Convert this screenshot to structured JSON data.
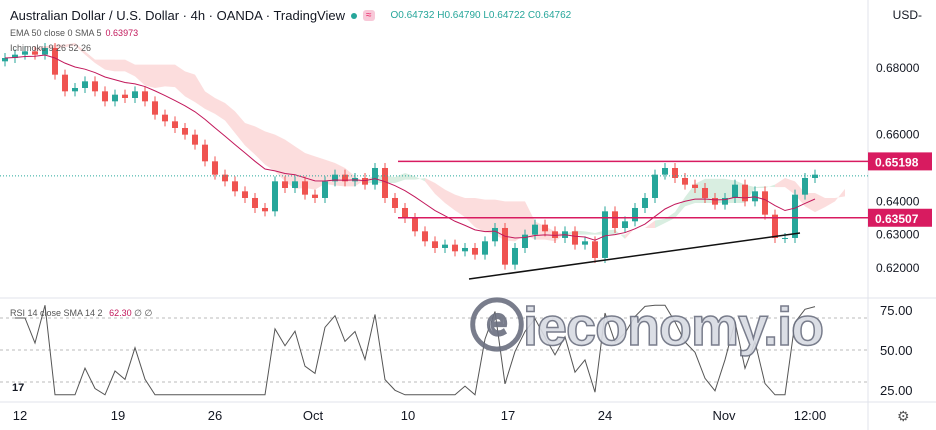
{
  "header": {
    "title": "Australian Dollar / U.S. Dollar · 4h · OANDA · TradingView",
    "open": "O0.64732",
    "high": "H0.64790",
    "low": "L0.64722",
    "close": "C0.64762",
    "badge": "≈"
  },
  "indicators": {
    "ema": {
      "label": "EMA 50 close 0 SMA 5",
      "value": "0.63973"
    },
    "ichimoku": {
      "label": "Ichimoku 9 26 52 26"
    },
    "rsi": {
      "label": "RSI 14 close SMA 14 2",
      "value": "62.30",
      "extra": "∅ ∅"
    }
  },
  "currency": "USD-",
  "watermark": "ieconomy.io",
  "tv_logo": "17",
  "colors": {
    "up": "#26a69a",
    "down": "#ef5350",
    "ema": "#c2185b",
    "level": "#d81b60",
    "cloud_bear": "#fbd5d5",
    "cloud_bull": "#cfead9",
    "rsi": "#555555"
  },
  "chart_data": {
    "type": "candlestick",
    "price_axis": {
      "ylim": [
        0.616,
        0.69
      ],
      "ticks": [
        "0.68000",
        "0.66000",
        "0.64000",
        "0.63000",
        "0.62000"
      ]
    },
    "time_axis": {
      "ticks": [
        "12",
        "19",
        "26",
        "Oct",
        "10",
        "17",
        "24",
        "Nov",
        "12:00"
      ]
    },
    "closes": [
      0.683,
      0.684,
      0.685,
      0.684,
      0.686,
      0.678,
      0.673,
      0.674,
      0.676,
      0.673,
      0.67,
      0.672,
      0.671,
      0.673,
      0.67,
      0.666,
      0.664,
      0.662,
      0.66,
      0.657,
      0.652,
      0.648,
      0.646,
      0.643,
      0.641,
      0.638,
      0.637,
      0.646,
      0.644,
      0.646,
      0.642,
      0.641,
      0.646,
      0.648,
      0.646,
      0.647,
      0.645,
      0.65,
      0.641,
      0.638,
      0.635,
      0.631,
      0.628,
      0.626,
      0.627,
      0.625,
      0.626,
      0.624,
      0.628,
      0.632,
      0.621,
      0.626,
      0.63,
      0.633,
      0.631,
      0.629,
      0.631,
      0.627,
      0.628,
      0.623,
      0.637,
      0.632,
      0.634,
      0.638,
      0.641,
      0.648,
      0.65,
      0.647,
      0.645,
      0.644,
      0.641,
      0.639,
      0.641,
      0.645,
      0.64,
      0.643,
      0.636,
      0.629,
      0.629,
      0.642,
      0.647,
      0.648
    ],
    "levels": [
      {
        "price": 0.65198,
        "label": "0.65198"
      },
      {
        "price": 0.63507,
        "label": "0.63507"
      }
    ],
    "last_price": 0.64762,
    "trendline": {
      "start_index": 47,
      "start_price": 0.6167,
      "end_index": 80,
      "end_price": 0.6305
    },
    "rsi": {
      "ylim": [
        15,
        85
      ],
      "ticks": [
        "75.00",
        "50.00",
        "25.00"
      ],
      "bands": [
        70,
        50,
        30
      ]
    },
    "grid": false
  }
}
